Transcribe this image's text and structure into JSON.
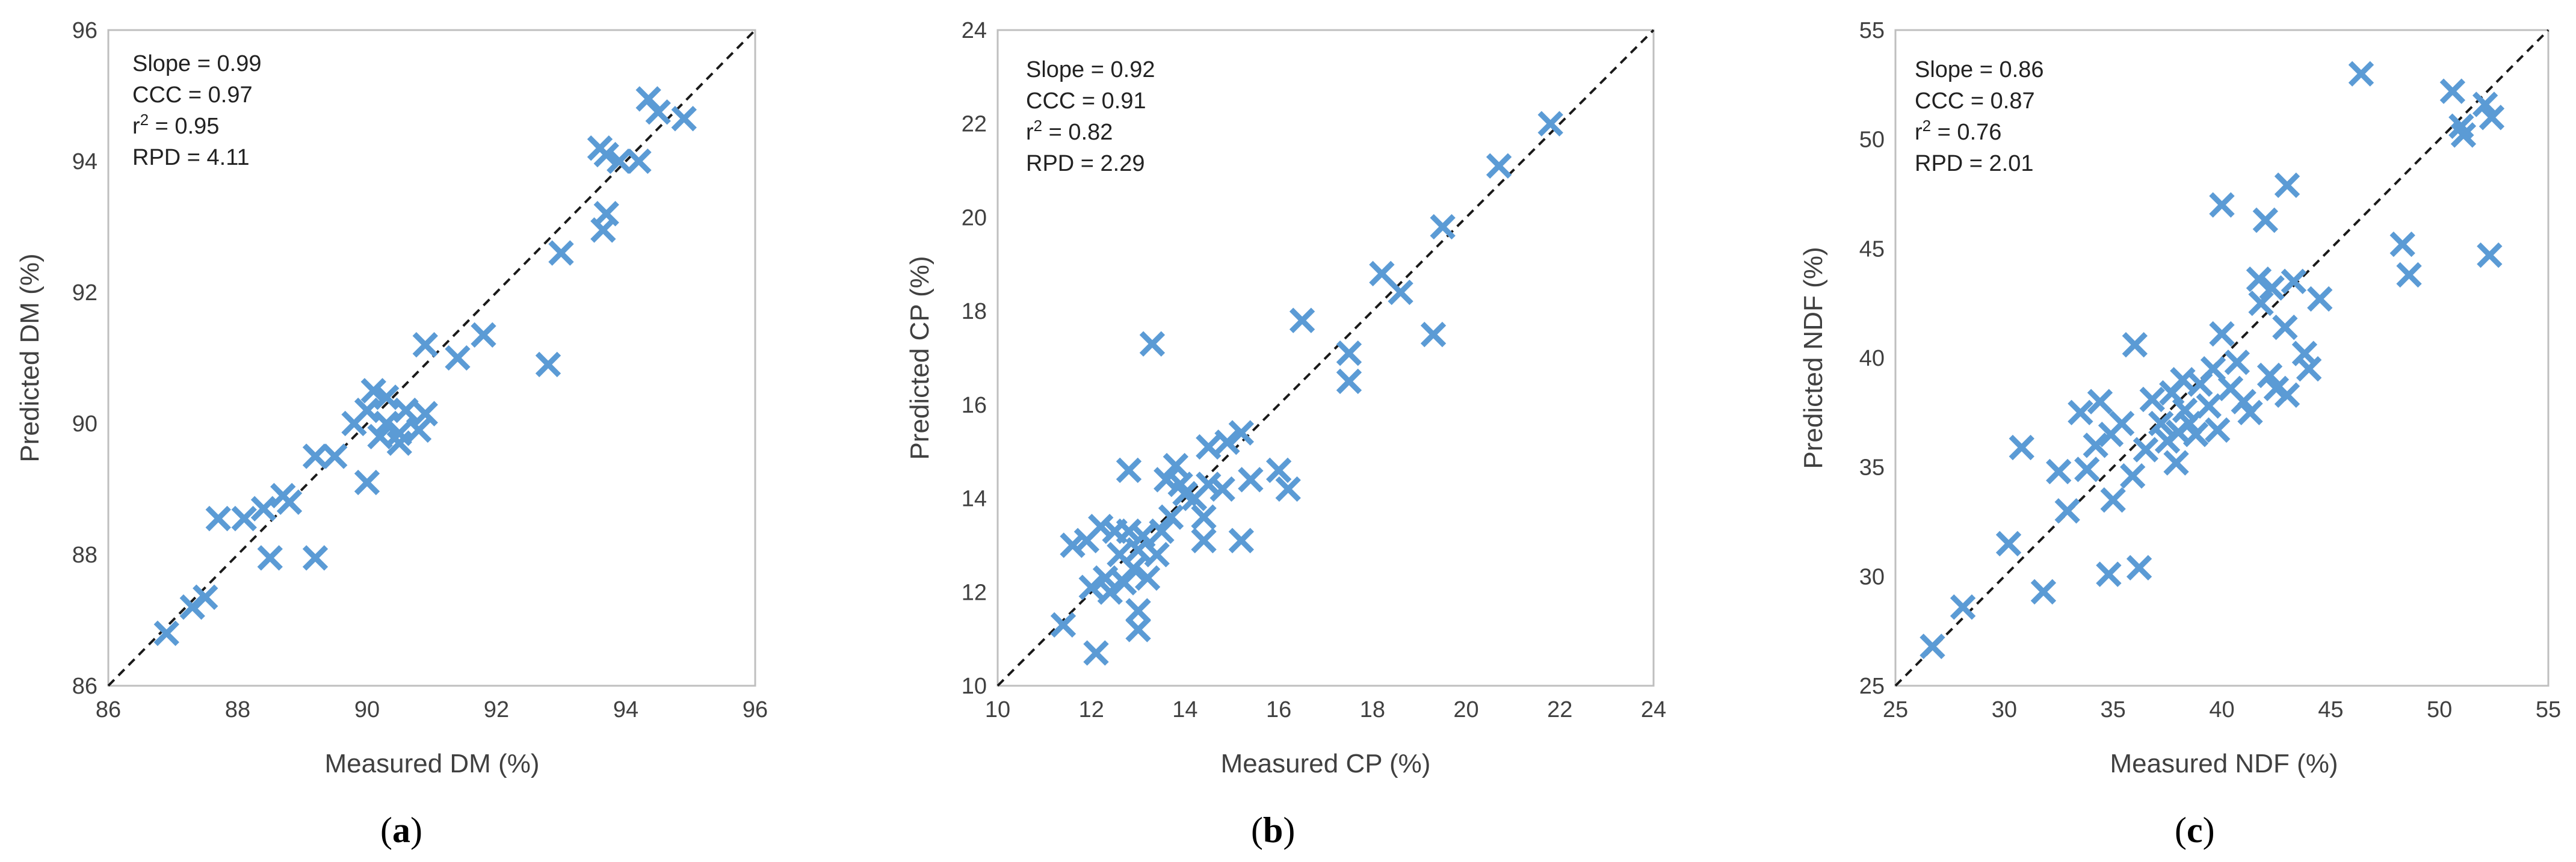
{
  "marker_color": "#5b9bd5",
  "chart_data": [
    {
      "type": "scatter",
      "panel_label": "a",
      "xlabel": "Measured DM (%)",
      "ylabel": "Predicted DM (%)",
      "xlim": [
        86,
        96
      ],
      "ylim": [
        86,
        96
      ],
      "ticks": [
        86,
        88,
        90,
        92,
        94,
        96
      ],
      "reference_line": "1:1 dashed",
      "stats": {
        "slope": "Slope = 0.99",
        "ccc": "CCC = 0.97",
        "r2_prefix": "r",
        "r2_sup": "2",
        "r2_value": " = 0.95",
        "rpd": "RPD = 4.11"
      },
      "points": [
        [
          86.9,
          86.8
        ],
        [
          87.3,
          87.2
        ],
        [
          87.5,
          87.35
        ],
        [
          87.7,
          88.55
        ],
        [
          88.1,
          88.55
        ],
        [
          88.4,
          88.7
        ],
        [
          88.5,
          87.95
        ],
        [
          88.7,
          88.9
        ],
        [
          88.8,
          88.8
        ],
        [
          89.2,
          87.95
        ],
        [
          89.2,
          89.5
        ],
        [
          89.5,
          89.5
        ],
        [
          89.8,
          90.0
        ],
        [
          90.0,
          89.1
        ],
        [
          90.0,
          90.2
        ],
        [
          90.1,
          90.5
        ],
        [
          90.2,
          89.8
        ],
        [
          90.3,
          90.0
        ],
        [
          90.3,
          90.4
        ],
        [
          90.5,
          89.85
        ],
        [
          90.6,
          90.2
        ],
        [
          90.5,
          89.7
        ],
        [
          90.8,
          89.9
        ],
        [
          90.9,
          90.15
        ],
        [
          90.9,
          91.2
        ],
        [
          91.4,
          91.0
        ],
        [
          91.8,
          91.35
        ],
        [
          92.8,
          90.9
        ],
        [
          93.0,
          92.6
        ],
        [
          93.6,
          94.2
        ],
        [
          93.7,
          94.1
        ],
        [
          93.7,
          93.2
        ],
        [
          93.65,
          92.95
        ],
        [
          93.9,
          94.0
        ],
        [
          94.2,
          94.0
        ],
        [
          94.35,
          94.95
        ],
        [
          94.5,
          94.75
        ],
        [
          94.9,
          94.65
        ]
      ]
    },
    {
      "type": "scatter",
      "panel_label": "b",
      "xlabel": "Measured CP (%)",
      "ylabel": "Predicted CP (%)",
      "xlim": [
        10,
        24
      ],
      "ylim": [
        10,
        24
      ],
      "ticks": [
        10,
        12,
        14,
        16,
        18,
        20,
        22,
        24
      ],
      "reference_line": "1:1 dashed",
      "stats": {
        "slope": "Slope = 0.92",
        "ccc": "CCC = 0.91",
        "r2_prefix": "r",
        "r2_sup": "2",
        "r2_value": " = 0.82",
        "rpd": "RPD = 2.29"
      },
      "points": [
        [
          11.4,
          11.3
        ],
        [
          11.6,
          13.0
        ],
        [
          11.9,
          13.1
        ],
        [
          12.0,
          12.1
        ],
        [
          12.1,
          10.7
        ],
        [
          12.2,
          13.4
        ],
        [
          12.3,
          12.3
        ],
        [
          12.4,
          12.0
        ],
        [
          12.5,
          13.3
        ],
        [
          12.6,
          12.8
        ],
        [
          12.7,
          12.2
        ],
        [
          12.8,
          14.6
        ],
        [
          12.8,
          13.3
        ],
        [
          12.9,
          12.5
        ],
        [
          13.0,
          11.2
        ],
        [
          13.0,
          11.6
        ],
        [
          13.0,
          12.9
        ],
        [
          13.1,
          13.2
        ],
        [
          13.2,
          12.3
        ],
        [
          13.3,
          17.3
        ],
        [
          13.4,
          12.8
        ],
        [
          13.5,
          13.3
        ],
        [
          13.6,
          14.4
        ],
        [
          13.7,
          13.6
        ],
        [
          13.8,
          14.7
        ],
        [
          13.9,
          14.3
        ],
        [
          14.0,
          14.1
        ],
        [
          14.2,
          14.0
        ],
        [
          14.4,
          13.6
        ],
        [
          14.4,
          13.1
        ],
        [
          14.5,
          14.3
        ],
        [
          14.5,
          15.1
        ],
        [
          14.8,
          14.2
        ],
        [
          14.9,
          15.2
        ],
        [
          15.2,
          13.1
        ],
        [
          15.2,
          15.4
        ],
        [
          15.4,
          14.4
        ],
        [
          16.0,
          14.6
        ],
        [
          16.2,
          14.2
        ],
        [
          16.5,
          17.8
        ],
        [
          17.5,
          16.5
        ],
        [
          17.5,
          17.1
        ],
        [
          18.2,
          18.8
        ],
        [
          18.6,
          18.4
        ],
        [
          19.3,
          17.5
        ],
        [
          19.5,
          19.8
        ],
        [
          20.7,
          21.1
        ],
        [
          21.8,
          22.0
        ]
      ]
    },
    {
      "type": "scatter",
      "panel_label": "c",
      "xlabel": "Measured NDF (%)",
      "ylabel": "Predicted NDF (%)",
      "xlim": [
        25,
        55
      ],
      "ylim": [
        25,
        55
      ],
      "ticks": [
        25,
        30,
        35,
        40,
        45,
        50,
        55
      ],
      "reference_line": "1:1 dashed",
      "stats": {
        "slope": "Slope = 0.86",
        "ccc": "CCC = 0.87",
        "r2_prefix": "r",
        "r2_sup": "2",
        "r2_value": " = 0.76",
        "rpd": "RPD = 2.01"
      },
      "points": [
        [
          26.7,
          26.8
        ],
        [
          28.1,
          28.6
        ],
        [
          30.2,
          31.5
        ],
        [
          30.8,
          35.9
        ],
        [
          31.8,
          29.3
        ],
        [
          32.5,
          34.8
        ],
        [
          32.9,
          33.0
        ],
        [
          33.5,
          37.5
        ],
        [
          33.8,
          34.9
        ],
        [
          34.2,
          36.0
        ],
        [
          34.4,
          38.0
        ],
        [
          34.8,
          30.1
        ],
        [
          34.9,
          36.5
        ],
        [
          35.0,
          33.5
        ],
        [
          35.4,
          37.0
        ],
        [
          35.9,
          34.6
        ],
        [
          36.0,
          40.6
        ],
        [
          36.2,
          30.4
        ],
        [
          36.5,
          35.8
        ],
        [
          36.8,
          38.1
        ],
        [
          37.2,
          37.0
        ],
        [
          37.5,
          36.2
        ],
        [
          37.7,
          38.4
        ],
        [
          37.9,
          35.2
        ],
        [
          38.0,
          36.6
        ],
        [
          38.2,
          39.0
        ],
        [
          38.3,
          37.6
        ],
        [
          38.5,
          37.0
        ],
        [
          38.8,
          36.5
        ],
        [
          39.0,
          38.8
        ],
        [
          39.4,
          37.8
        ],
        [
          39.6,
          39.5
        ],
        [
          39.8,
          36.7
        ],
        [
          40.0,
          41.1
        ],
        [
          40.0,
          47.0
        ],
        [
          40.4,
          38.6
        ],
        [
          40.7,
          39.8
        ],
        [
          41.0,
          38.0
        ],
        [
          41.3,
          37.5
        ],
        [
          41.7,
          43.6
        ],
        [
          41.8,
          42.5
        ],
        [
          42.0,
          46.3
        ],
        [
          42.2,
          39.2
        ],
        [
          42.3,
          43.2
        ],
        [
          42.5,
          38.6
        ],
        [
          42.9,
          41.4
        ],
        [
          43.0,
          38.3
        ],
        [
          43.0,
          47.9
        ],
        [
          43.3,
          43.5
        ],
        [
          43.8,
          40.2
        ],
        [
          44.0,
          39.5
        ],
        [
          44.5,
          42.7
        ],
        [
          46.4,
          53.0
        ],
        [
          48.3,
          45.2
        ],
        [
          48.6,
          43.8
        ],
        [
          50.6,
          52.2
        ],
        [
          51.0,
          50.6
        ],
        [
          51.1,
          50.2
        ],
        [
          52.1,
          51.6
        ],
        [
          52.3,
          44.7
        ],
        [
          52.4,
          51.0
        ]
      ]
    }
  ]
}
